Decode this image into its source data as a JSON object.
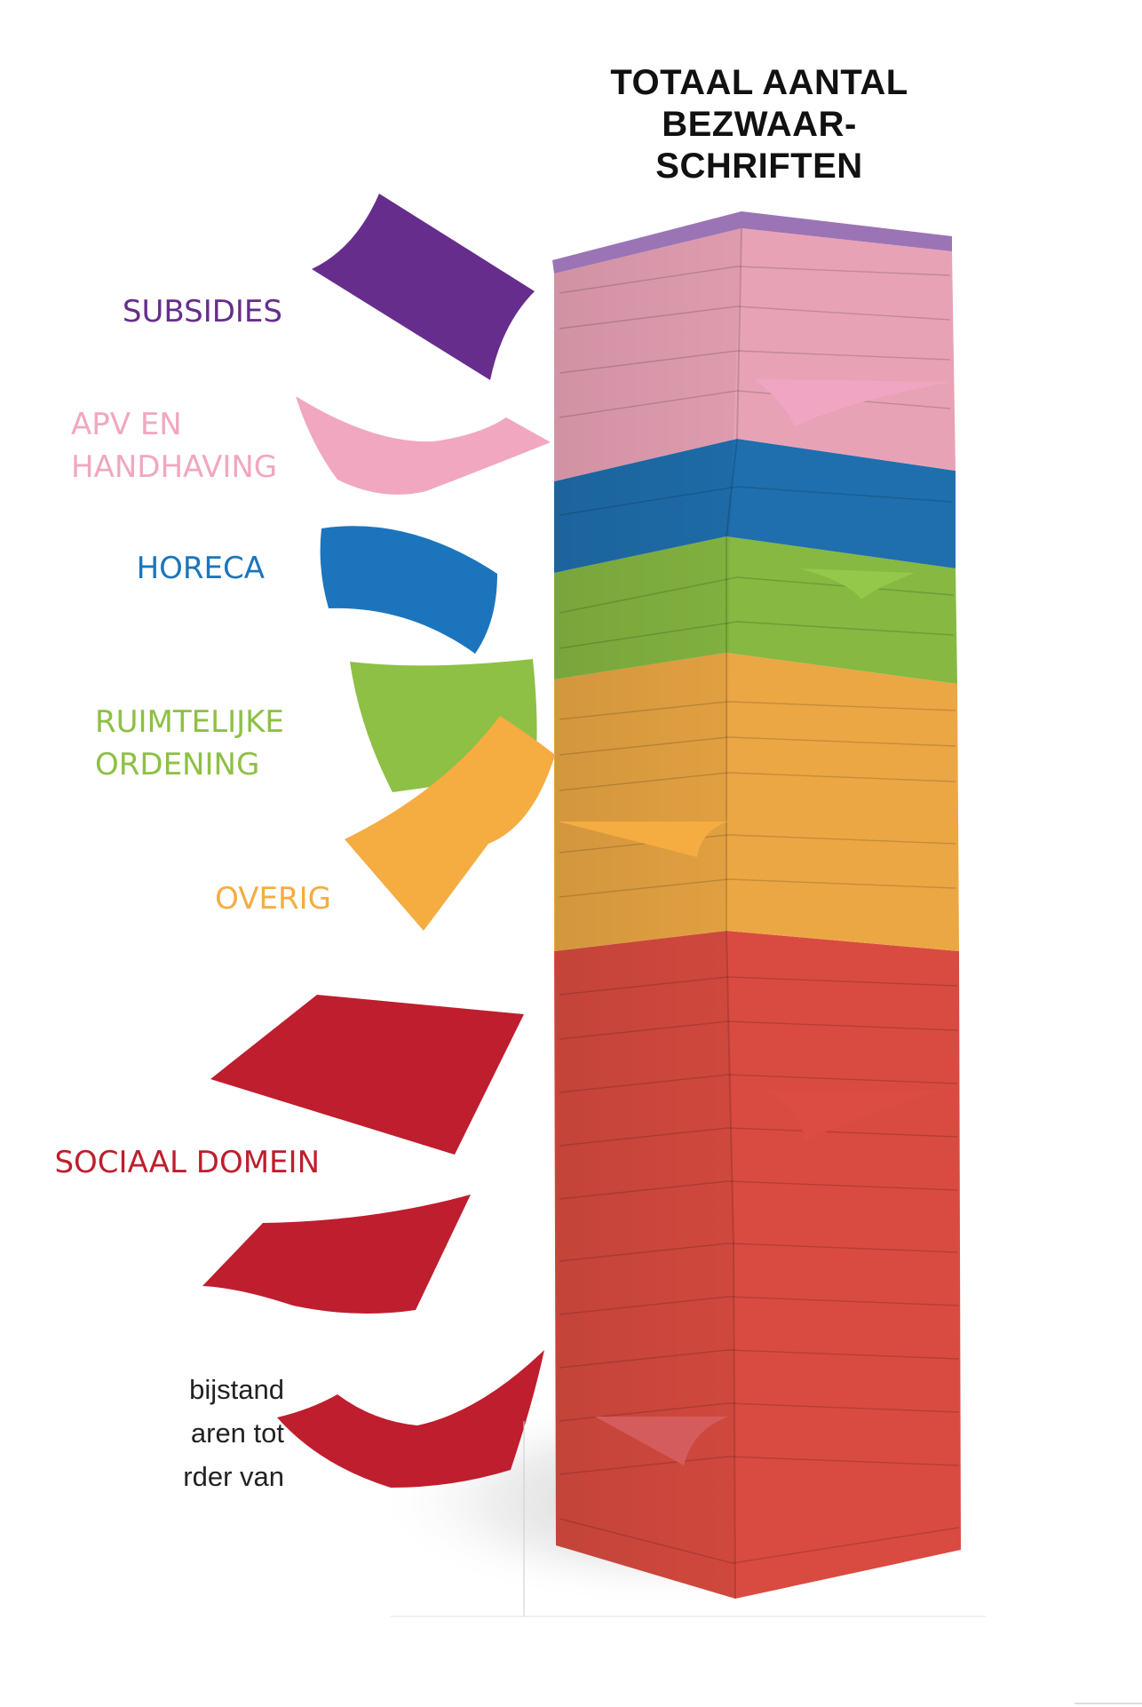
{
  "title_lines": [
    "TOTAAL AANTAL",
    "BEZWAAR-",
    "SCHRIFTEN"
  ],
  "categories": [
    {
      "key": "subsidies",
      "lines": [
        "SUBSIDIES"
      ],
      "color": "#662d8c",
      "stack_color": "#9b74b5"
    },
    {
      "key": "apv",
      "lines": [
        "APV EN",
        "HANDHAVING"
      ],
      "color": "#f1a7c0",
      "stack_color": "#e8a2b6"
    },
    {
      "key": "horeca",
      "lines": [
        "HORECA"
      ],
      "color": "#1c75bc",
      "stack_color": "#1f6fae"
    },
    {
      "key": "ruimtelijke",
      "lines": [
        "RUIMTELIJKE",
        "ORDENING"
      ],
      "color": "#8dc044",
      "stack_color": "#86b842"
    },
    {
      "key": "overig",
      "lines": [
        "OVERIG"
      ],
      "color": "#f5ac41",
      "stack_color": "#eba744"
    },
    {
      "key": "sociaal",
      "lines": [
        "SOCIAAL DOMEIN"
      ],
      "color": "#be1e2d",
      "stack_color": "#d94b40"
    }
  ],
  "cut_text_lines": [
    "bijstand",
    "aren tot",
    "rder van"
  ]
}
